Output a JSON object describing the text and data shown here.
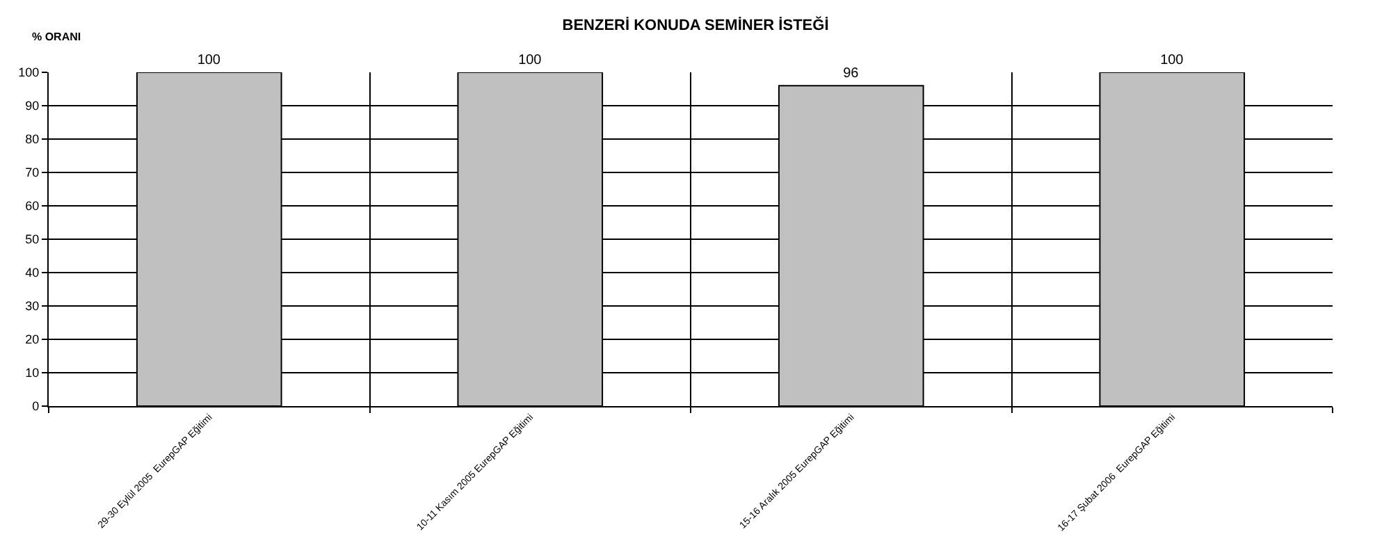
{
  "chart_data": {
    "type": "bar",
    "title": "BENZERİ KONUDA SEMİNER İSTEĞİ",
    "ylabel": "% ORANI",
    "categories": [
      "29-30 Eylül 2005  EurepGAP Eğitimi",
      "10-11 Kasım 2005 EurepGAP Eğitimi",
      "15-16 Aralık 2005 EurepGAP Eğitimi",
      "16-17 Şubat 2006  EurepGAP Eğitimi"
    ],
    "values": [
      100,
      100,
      96,
      100
    ],
    "color": "#c0c0c0",
    "data_labels": true,
    "ylim": [
      0,
      100
    ],
    "yticks": [
      0,
      10,
      20,
      30,
      40,
      50,
      60,
      70,
      80,
      90,
      100
    ],
    "grid": true,
    "legend": false
  }
}
